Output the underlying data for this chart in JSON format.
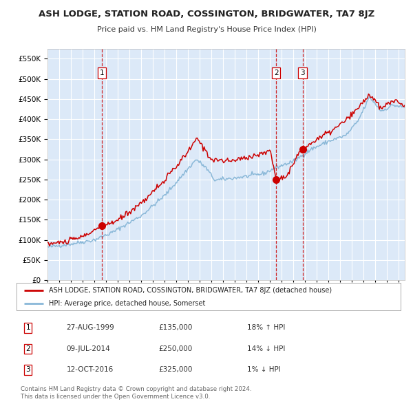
{
  "title": "ASH LODGE, STATION ROAD, COSSINGTON, BRIDGWATER, TA7 8JZ",
  "subtitle": "Price paid vs. HM Land Registry's House Price Index (HPI)",
  "legend_line1": "ASH LODGE, STATION ROAD, COSSINGTON, BRIDGWATER, TA7 8JZ (detached house)",
  "legend_line2": "HPI: Average price, detached house, Somerset",
  "table_rows": [
    {
      "num": "1",
      "date": "27-AUG-1999",
      "price": "£135,000",
      "hpi": "18% ↑ HPI"
    },
    {
      "num": "2",
      "date": "09-JUL-2014",
      "price": "£250,000",
      "hpi": "14% ↓ HPI"
    },
    {
      "num": "3",
      "date": "12-OCT-2016",
      "price": "£325,000",
      "hpi": "1% ↓ HPI"
    }
  ],
  "footer": "Contains HM Land Registry data © Crown copyright and database right 2024.\nThis data is licensed under the Open Government Licence v3.0.",
  "sale_dates": [
    1999.65,
    2014.52,
    2016.78
  ],
  "sale_prices": [
    135000,
    250000,
    325000
  ],
  "sale_labels": [
    "1",
    "2",
    "3"
  ],
  "ylim": [
    0,
    575000
  ],
  "xlim_start": 1995.0,
  "xlim_end": 2025.5,
  "bg_color": "#dce9f8",
  "grid_color": "#ffffff",
  "red_line_color": "#cc0000",
  "blue_line_color": "#8ab8d8",
  "sale_dot_color": "#cc0000",
  "vline_color": "#cc0000",
  "box_edge_color": "#cc0000",
  "title_fontsize": 9.5,
  "subtitle_fontsize": 8.5
}
